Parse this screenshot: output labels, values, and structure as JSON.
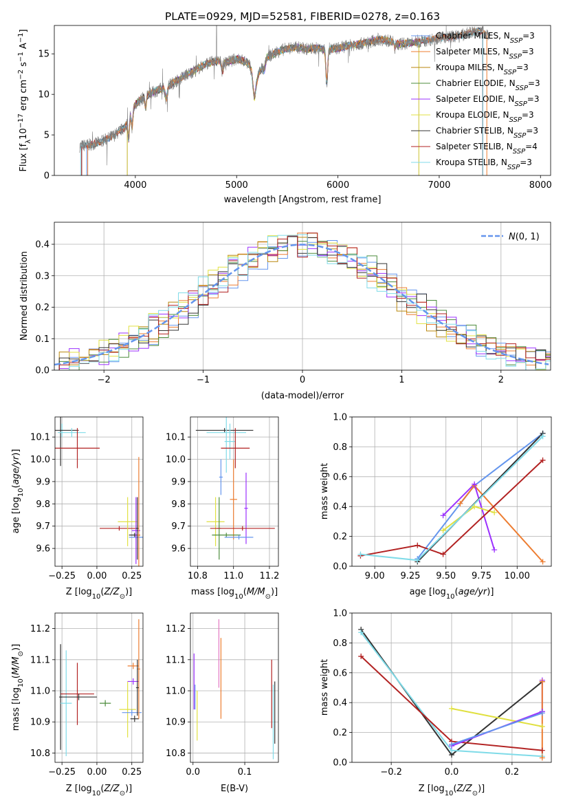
{
  "colors": {
    "c0": "#6495ed",
    "c1": "#ed7d31",
    "c2": "#b8860b",
    "c3": "#4b8b3b",
    "c4": "#9b30ff",
    "c5": "#e0e040",
    "c6": "#333333",
    "c7": "#b22222",
    "c8": "#7fdbe8",
    "grid": "#b0b0b0",
    "norm": "#6495ed",
    "spec": "#7f7f7f"
  },
  "chart_data": [
    {
      "id": "spectrum",
      "type": "line",
      "title": "PLATE=0929, MJD=52581, FIBERID=0278, z=0.163",
      "xlabel": "wavelength [Angstrom, rest frame]",
      "ylabel": "Flux [fλ10⁻¹⁷ erg cm⁻² s⁻¹ A⁻¹]",
      "xlim": [
        3200,
        8100
      ],
      "ylim": [
        0,
        18.5
      ],
      "xticks": [
        "4000",
        "5000",
        "6000",
        "7000",
        "8000"
      ],
      "yticks": [
        "0",
        "5",
        "10",
        "15"
      ],
      "legend_position": "top-right",
      "legend": [
        {
          "label": "Chabrier MILES, N",
          "sub": "SSP",
          "tail": "=3",
          "color": "c0"
        },
        {
          "label": "Salpeter MILES, N",
          "sub": "SSP",
          "tail": "=3",
          "color": "c1"
        },
        {
          "label": "Kroupa MILES, N",
          "sub": "SSP",
          "tail": "=3",
          "color": "c2"
        },
        {
          "label": "Chabrier ELODIE, N",
          "sub": "SSP",
          "tail": "=3",
          "color": "c3"
        },
        {
          "label": "Salpeter ELODIE, N",
          "sub": "SSP",
          "tail": "=3",
          "color": "c4"
        },
        {
          "label": "Kroupa ELODIE, N",
          "sub": "SSP",
          "tail": "=3",
          "color": "c5"
        },
        {
          "label": "Chabrier STELIB, N",
          "sub": "SSP",
          "tail": "=3",
          "color": "c6"
        },
        {
          "label": "Salpeter STELIB, N",
          "sub": "SSP",
          "tail": "=4",
          "color": "c7"
        },
        {
          "label": "Kroupa STELIB, N",
          "sub": "SSP",
          "tail": "=3",
          "color": "c8"
        }
      ],
      "flux_profile": {
        "x": [
          3450,
          3600,
          3700,
          3800,
          3900,
          3950,
          4000,
          4100,
          4200,
          4300,
          4400,
          4500,
          4600,
          4700,
          4800,
          4900,
          5000,
          5100,
          5200,
          5300,
          5400,
          5500,
          5600,
          5700,
          5800,
          5900,
          6000,
          6100,
          6200,
          6300,
          6400,
          6500,
          6600,
          6700,
          6800,
          6900,
          7000,
          7100,
          7200,
          7300,
          7400,
          7500
        ],
        "y": [
          3.6,
          3.9,
          4.4,
          5.0,
          6.0,
          7.5,
          8.8,
          9.8,
          10.4,
          10.9,
          11.6,
          12.4,
          13.0,
          13.8,
          14.1,
          13.9,
          14.4,
          14.0,
          12.2,
          14.6,
          15.2,
          15.7,
          15.8,
          15.6,
          15.7,
          15.5,
          15.7,
          16.0,
          16.2,
          16.4,
          16.8,
          16.6,
          16.2,
          16.3,
          16.5,
          16.7,
          17.0,
          17.1,
          17.2,
          17.6,
          17.8,
          17.4
        ]
      }
    },
    {
      "id": "residuals",
      "type": "histogram",
      "xlabel": "(data-model)/error",
      "ylabel": "Normed distribution",
      "xlim": [
        -2.5,
        2.5
      ],
      "ylim": [
        0,
        0.47
      ],
      "xticks": [
        "−2",
        "−1",
        "0",
        "1",
        "2"
      ],
      "yticks": [
        "0.0",
        "0.1",
        "0.2",
        "0.3",
        "0.4"
      ],
      "legend": [
        {
          "label": "N(0,1)",
          "color": "norm"
        }
      ],
      "legend_position": "top-right",
      "bin_width": 0.1
    },
    {
      "id": "z_age",
      "type": "errorbar",
      "xlabel": "Z [log₁₀(Z/Z⊙)]",
      "ylabel": "age  [log₁₀(age/yr)]",
      "xlim": [
        -0.3,
        0.33
      ],
      "ylim": [
        9.52,
        10.19
      ],
      "xticks": [
        "−0.25",
        "0.00",
        "0.25"
      ],
      "yticks": [
        "9.6",
        "9.7",
        "9.8",
        "9.9",
        "10.0",
        "10.1"
      ],
      "points": [
        {
          "x": -0.25,
          "y": 10.13,
          "xerr": 0.01,
          "yerr": 0.03,
          "color": "c8"
        },
        {
          "x": -0.26,
          "y": 10.13,
          "xerr": 0.13,
          "yerr": 0.16,
          "color": "c6"
        },
        {
          "x": -0.18,
          "y": 10.12,
          "xerr": 0.1,
          "yerr": 0.02,
          "color": "c8"
        },
        {
          "x": -0.14,
          "y": 10.05,
          "xerr": 0.16,
          "yerr": 0.09,
          "color": "c7"
        },
        {
          "x": 0.16,
          "y": 9.69,
          "xerr": 0.14,
          "yerr": 0.01,
          "color": "c7"
        },
        {
          "x": 0.22,
          "y": 9.72,
          "xerr": 0.07,
          "yerr": 0.11,
          "color": "c5"
        },
        {
          "x": 0.27,
          "y": 9.66,
          "xerr": 0.04,
          "yerr": 0.01,
          "color": "c6"
        },
        {
          "x": 0.28,
          "y": 9.65,
          "xerr": 0.05,
          "yerr": 0.01,
          "color": "c0"
        },
        {
          "x": 0.28,
          "y": 9.68,
          "xerr": 0.03,
          "yerr": 0.15,
          "color": "c4"
        },
        {
          "x": 0.29,
          "y": 9.69,
          "xerr": 0.01,
          "yerr": 0.14,
          "color": "c6"
        },
        {
          "x": 0.3,
          "y": 9.66,
          "xerr": 0.01,
          "yerr": 0.35,
          "color": "c1"
        }
      ]
    },
    {
      "id": "mass_age",
      "type": "errorbar",
      "xlabel": "mass [log₁₀(M/M⊙)]",
      "ylabel": "",
      "xlim": [
        10.76,
        11.25
      ],
      "ylim": [
        9.52,
        10.19
      ],
      "xticks": [
        "10.8",
        "11.0",
        "11.2"
      ],
      "yticks": [
        "9.6",
        "9.7",
        "9.8",
        "9.9",
        "10.0",
        "10.1"
      ],
      "points": [
        {
          "x": 10.95,
          "y": 10.13,
          "xerr": 0.16,
          "yerr": 0.01,
          "color": "c6"
        },
        {
          "x": 10.96,
          "y": 10.12,
          "xerr": 0.11,
          "yerr": 0.18,
          "color": "c8"
        },
        {
          "x": 10.98,
          "y": 10.08,
          "xerr": 0.03,
          "yerr": 0.08,
          "color": "c8"
        },
        {
          "x": 11.01,
          "y": 10.05,
          "xerr": 0.08,
          "yerr": 0.09,
          "color": "c7"
        },
        {
          "x": 10.93,
          "y": 9.92,
          "xerr": 0.01,
          "yerr": 0.08,
          "color": "c0"
        },
        {
          "x": 11.0,
          "y": 9.82,
          "xerr": 0.02,
          "yerr": 0.18,
          "color": "c1"
        },
        {
          "x": 11.07,
          "y": 9.78,
          "xerr": 0.01,
          "yerr": 0.16,
          "color": "c4"
        },
        {
          "x": 10.9,
          "y": 9.72,
          "xerr": 0.05,
          "yerr": 0.11,
          "color": "c5"
        },
        {
          "x": 10.92,
          "y": 9.69,
          "xerr": 0.01,
          "yerr": 0.14,
          "color": "c3"
        },
        {
          "x": 11.05,
          "y": 9.69,
          "xerr": 0.18,
          "yerr": 0.01,
          "color": "c7"
        },
        {
          "x": 10.96,
          "y": 9.66,
          "xerr": 0.08,
          "yerr": 0.01,
          "color": "c3"
        },
        {
          "x": 11.03,
          "y": 9.65,
          "xerr": 0.08,
          "yerr": 0.01,
          "color": "c0"
        }
      ]
    },
    {
      "id": "weight_age",
      "type": "line",
      "xlabel": "age  [log₁₀(age/yr)]",
      "ylabel": "mass weight",
      "xlim": [
        8.84,
        10.24
      ],
      "ylim": [
        0,
        1
      ],
      "xticks": [
        "9.00",
        "9.25",
        "9.50",
        "9.75",
        "10.00"
      ],
      "yticks": [
        "0.0",
        "0.2",
        "0.4",
        "0.6",
        "0.8",
        "1.0"
      ],
      "series": [
        {
          "color": "c0",
          "x": [
            9.3,
            9.7,
            10.18
          ],
          "y": [
            0.05,
            0.54,
            0.89
          ]
        },
        {
          "color": "c1",
          "x": [
            9.6,
            9.7,
            10.18
          ],
          "y": [
            0.42,
            0.54,
            0.03
          ]
        },
        {
          "color": "c4",
          "x": [
            9.48,
            9.7,
            9.84
          ],
          "y": [
            0.34,
            0.55,
            0.11
          ]
        },
        {
          "color": "c5",
          "x": [
            9.48,
            9.7,
            9.84
          ],
          "y": [
            0.24,
            0.4,
            0.36
          ]
        },
        {
          "color": "c6",
          "x": [
            9.3,
            10.18
          ],
          "y": [
            0.03,
            0.89
          ]
        },
        {
          "color": "c7",
          "x": [
            8.9,
            9.3,
            9.48,
            10.18
          ],
          "y": [
            0.07,
            0.14,
            0.08,
            0.71
          ]
        },
        {
          "color": "c8",
          "x": [
            8.9,
            9.3,
            10.18
          ],
          "y": [
            0.08,
            0.04,
            0.87
          ]
        }
      ]
    },
    {
      "id": "z_mass",
      "type": "errorbar",
      "xlabel": "Z [log₁₀(Z/Z⊙)]",
      "ylabel": "mass [log₁₀(M/M⊙)]",
      "xlim": [
        -0.3,
        0.33
      ],
      "ylim": [
        10.77,
        11.25
      ],
      "xticks": [
        "−0.25",
        "0.00",
        "0.25"
      ],
      "yticks": [
        "10.8",
        "10.9",
        "11.0",
        "11.1",
        "11.2"
      ],
      "points": [
        {
          "x": -0.26,
          "y": 10.98,
          "xerr": 0.01,
          "yerr": 0.17,
          "color": "c6"
        },
        {
          "x": -0.22,
          "y": 10.96,
          "xerr": 0.04,
          "yerr": 0.17,
          "color": "c8"
        },
        {
          "x": -0.14,
          "y": 10.99,
          "xerr": 0.12,
          "yerr": 0.1,
          "color": "c7"
        },
        {
          "x": -0.13,
          "y": 10.98,
          "xerr": 0.13,
          "yerr": 0.01,
          "color": "c6"
        },
        {
          "x": 0.06,
          "y": 10.96,
          "xerr": 0.04,
          "yerr": 0.01,
          "color": "c3"
        },
        {
          "x": 0.22,
          "y": 10.94,
          "xerr": 0.06,
          "yerr": 0.09,
          "color": "c5"
        },
        {
          "x": 0.25,
          "y": 10.93,
          "xerr": 0.07,
          "yerr": 0.01,
          "color": "c0"
        },
        {
          "x": 0.27,
          "y": 10.91,
          "xerr": 0.03,
          "yerr": 0.01,
          "color": "c6"
        },
        {
          "x": 0.26,
          "y": 11.03,
          "xerr": 0.04,
          "yerr": 0.01,
          "color": "c4"
        },
        {
          "x": 0.26,
          "y": 11.08,
          "xerr": 0.04,
          "yerr": 0.01,
          "color": "c1"
        },
        {
          "x": 0.3,
          "y": 11.07,
          "xerr": 0.01,
          "yerr": 0.16,
          "color": "c1"
        },
        {
          "x": 0.29,
          "y": 11.01,
          "xerr": 0.01,
          "yerr": 0.09,
          "color": "c6"
        }
      ]
    },
    {
      "id": "ebv_mass",
      "type": "errorbar",
      "xlabel": "E(B-V)",
      "ylabel": "",
      "xlim": [
        -0.005,
        0.165
      ],
      "ylim": [
        10.77,
        11.25
      ],
      "xticks": [
        "0.0",
        "0.1"
      ],
      "yticks": [
        "10.8",
        "10.9",
        "11.0",
        "11.1",
        "11.2"
      ],
      "points": [
        {
          "x": 0.002,
          "y": 11.03,
          "xerr": 0,
          "yerr": 0.09,
          "color": "c4"
        },
        {
          "x": 0.004,
          "y": 10.98,
          "xerr": 0,
          "yerr": 0.04,
          "color": "c0"
        },
        {
          "x": 0.008,
          "y": 10.92,
          "xerr": 0,
          "yerr": 0.08,
          "color": "c5"
        },
        {
          "x": 0.05,
          "y": 11.12,
          "xerr": 0,
          "yerr": 0.11,
          "color": "#e377c2"
        },
        {
          "x": 0.054,
          "y": 11.04,
          "xerr": 0,
          "yerr": 0.13,
          "color": "c1"
        },
        {
          "x": 0.152,
          "y": 10.99,
          "xerr": 0,
          "yerr": 0.11,
          "color": "c7"
        },
        {
          "x": 0.155,
          "y": 10.9,
          "xerr": 0,
          "yerr": 0.12,
          "color": "c8"
        },
        {
          "x": 0.158,
          "y": 10.93,
          "xerr": 0,
          "yerr": 0.1,
          "color": "c6"
        }
      ]
    },
    {
      "id": "weight_z",
      "type": "line",
      "xlabel": "Z [log₁₀(Z/Z⊙)]",
      "ylabel": "mass weight",
      "xlim": [
        -0.33,
        0.33
      ],
      "ylim": [
        0,
        1
      ],
      "xticks": [
        "−0.2",
        "0.0",
        "0.2"
      ],
      "yticks": [
        "0.0",
        "0.2",
        "0.4",
        "0.6",
        "0.8",
        "1.0"
      ],
      "series": [
        {
          "color": "c6",
          "x": [
            -0.3,
            0.0,
            0.3
          ],
          "y": [
            0.89,
            0.05,
            0.54
          ]
        },
        {
          "color": "c8",
          "x": [
            -0.3,
            0.0,
            0.3
          ],
          "y": [
            0.87,
            0.08,
            0.04
          ]
        },
        {
          "color": "c7",
          "x": [
            -0.3,
            0.0,
            0.3
          ],
          "y": [
            0.71,
            0.14,
            0.08
          ]
        },
        {
          "color": "c5",
          "x": [
            0.0,
            0.3
          ],
          "y": [
            0.36,
            0.24
          ]
        },
        {
          "color": "c4",
          "x": [
            0.0,
            0.3,
            0.3,
            0.3
          ],
          "y": [
            0.11,
            0.34,
            0.55,
            0.34
          ]
        },
        {
          "color": "c0",
          "x": [
            0.0,
            0.3
          ],
          "y": [
            0.12,
            0.33
          ]
        },
        {
          "color": "c1",
          "x": [
            0.3,
            0.3
          ],
          "y": [
            0.03,
            0.54
          ]
        }
      ]
    }
  ]
}
